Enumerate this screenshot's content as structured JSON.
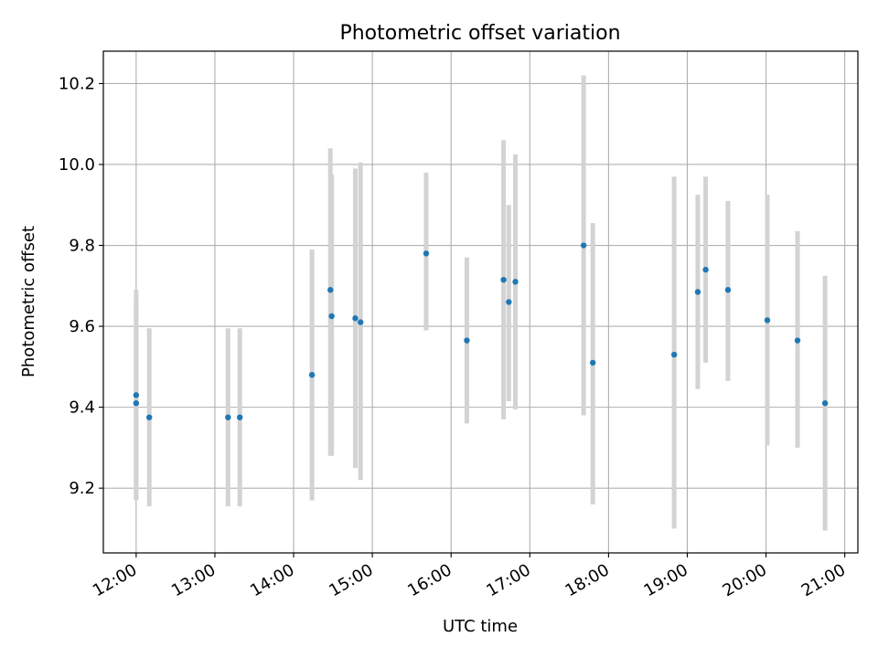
{
  "chart_data": {
    "type": "scatter",
    "title": "Photometric offset variation",
    "xlabel": "UTC time",
    "ylabel": "Photometric offset",
    "xlim": [
      "11:35",
      "21:10"
    ],
    "ylim": [
      9.04,
      10.28
    ],
    "x_tick_labels": [
      "12:00",
      "13:00",
      "14:00",
      "15:00",
      "16:00",
      "17:00",
      "18:00",
      "19:00",
      "20:00",
      "21:00"
    ],
    "y_tick_labels": [
      "9.2",
      "9.4",
      "9.6",
      "9.8",
      "10.0",
      "10.2"
    ],
    "grid": true,
    "colors": {
      "points": "#1f77b4",
      "error_bars": "#d3d3d3",
      "grid": "#b0b0b0"
    },
    "series": [
      {
        "points": [
          {
            "x": "12:00",
            "y": 9.43,
            "ylow": 9.17,
            "yhigh": 9.69
          },
          {
            "x": "12:00",
            "y": 9.41,
            "ylow": 9.17,
            "yhigh": 9.66
          },
          {
            "x": "12:10",
            "y": 9.375,
            "ylow": 9.155,
            "yhigh": 9.595
          },
          {
            "x": "13:10",
            "y": 9.375,
            "ylow": 9.155,
            "yhigh": 9.595
          },
          {
            "x": "13:19",
            "y": 9.375,
            "ylow": 9.155,
            "yhigh": 9.595
          },
          {
            "x": "14:14",
            "y": 9.48,
            "ylow": 9.17,
            "yhigh": 9.79
          },
          {
            "x": "14:28",
            "y": 9.69,
            "ylow": 9.28,
            "yhigh": 10.04
          },
          {
            "x": "14:29",
            "y": 9.625,
            "ylow": 9.28,
            "yhigh": 9.975
          },
          {
            "x": "14:47",
            "y": 9.62,
            "ylow": 9.25,
            "yhigh": 9.99
          },
          {
            "x": "14:51",
            "y": 9.61,
            "ylow": 9.22,
            "yhigh": 10.005
          },
          {
            "x": "15:41",
            "y": 9.78,
            "ylow": 9.59,
            "yhigh": 9.98
          },
          {
            "x": "16:12",
            "y": 9.565,
            "ylow": 9.36,
            "yhigh": 9.77
          },
          {
            "x": "16:40",
            "y": 9.715,
            "ylow": 9.37,
            "yhigh": 10.06
          },
          {
            "x": "16:44",
            "y": 9.66,
            "ylow": 9.415,
            "yhigh": 9.9
          },
          {
            "x": "16:49",
            "y": 9.71,
            "ylow": 9.395,
            "yhigh": 10.025
          },
          {
            "x": "17:41",
            "y": 9.8,
            "ylow": 9.38,
            "yhigh": 10.22
          },
          {
            "x": "17:48",
            "y": 9.51,
            "ylow": 9.16,
            "yhigh": 9.855
          },
          {
            "x": "18:50",
            "y": 9.53,
            "ylow": 9.1,
            "yhigh": 9.97
          },
          {
            "x": "19:08",
            "y": 9.685,
            "ylow": 9.445,
            "yhigh": 9.925
          },
          {
            "x": "19:14",
            "y": 9.74,
            "ylow": 9.51,
            "yhigh": 9.97
          },
          {
            "x": "19:31",
            "y": 9.69,
            "ylow": 9.465,
            "yhigh": 9.91
          },
          {
            "x": "20:01",
            "y": 9.615,
            "ylow": 9.305,
            "yhigh": 9.925
          },
          {
            "x": "20:24",
            "y": 9.565,
            "ylow": 9.3,
            "yhigh": 9.835
          },
          {
            "x": "20:45",
            "y": 9.41,
            "ylow": 9.095,
            "yhigh": 9.725
          }
        ]
      }
    ]
  }
}
